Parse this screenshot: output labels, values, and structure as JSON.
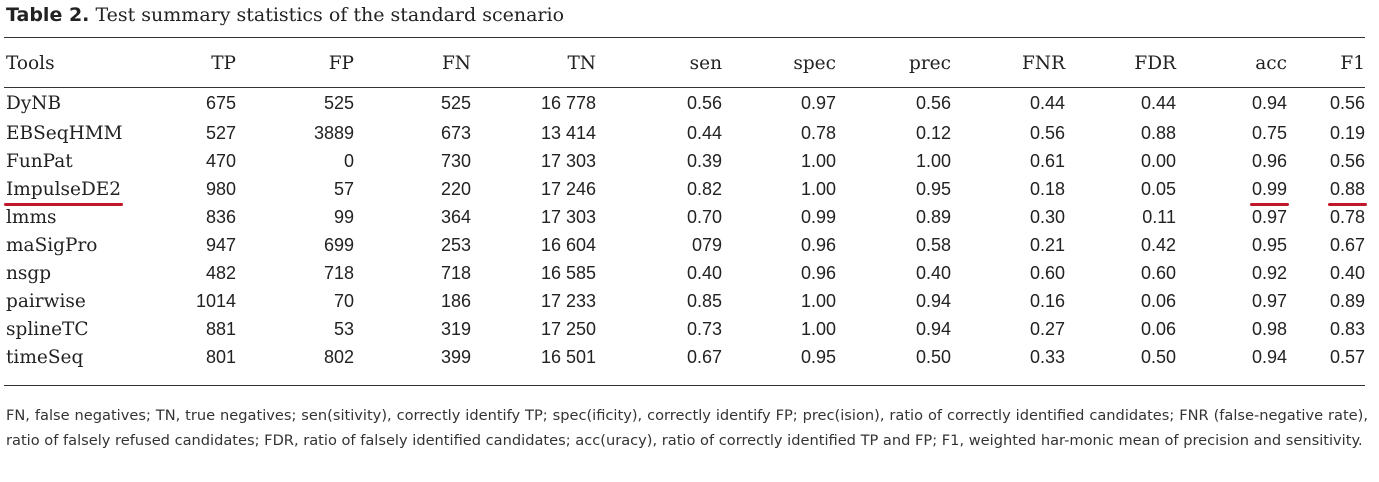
{
  "caption": {
    "label": "Table 2.",
    "title": "Test summary statistics of the standard scenario"
  },
  "headers": [
    "Tools",
    "TP",
    "FP",
    "FN",
    "TN",
    "sen",
    "spec",
    "prec",
    "FNR",
    "FDR",
    "acc",
    "F1"
  ],
  "rows": [
    [
      "DyNB",
      "675",
      "525",
      "525",
      "16 778",
      "0.56",
      "0.97",
      "0.56",
      "0.44",
      "0.44",
      "0.94",
      "0.56"
    ],
    [
      "EBSeqHMM",
      "527",
      "3889",
      "673",
      "13 414",
      "0.44",
      "0.78",
      "0.12",
      "0.56",
      "0.88",
      "0.75",
      "0.19"
    ],
    [
      "FunPat",
      "470",
      "0",
      "730",
      "17 303",
      "0.39",
      "1.00",
      "1.00",
      "0.61",
      "0.00",
      "0.96",
      "0.56"
    ],
    [
      "ImpulseDE2",
      "980",
      "57",
      "220",
      "17 246",
      "0.82",
      "1.00",
      "0.95",
      "0.18",
      "0.05",
      "0.99",
      "0.88"
    ],
    [
      "lmms",
      "836",
      "99",
      "364",
      "17 303",
      "0.70",
      "0.99",
      "0.89",
      "0.30",
      "0.11",
      "0.97",
      "0.78"
    ],
    [
      "maSigPro",
      "947",
      "699",
      "253",
      "16 604",
      "079",
      "0.96",
      "0.58",
      "0.21",
      "0.42",
      "0.95",
      "0.67"
    ],
    [
      "nsgp",
      "482",
      "718",
      "718",
      "16 585",
      "0.40",
      "0.96",
      "0.40",
      "0.60",
      "0.60",
      "0.92",
      "0.40"
    ],
    [
      "pairwise",
      "1014",
      "70",
      "186",
      "17 233",
      "0.85",
      "1.00",
      "0.94",
      "0.16",
      "0.06",
      "0.97",
      "0.89"
    ],
    [
      "splineTC",
      "881",
      "53",
      "319",
      "17 250",
      "0.73",
      "1.00",
      "0.94",
      "0.27",
      "0.06",
      "0.98",
      "0.83"
    ],
    [
      "timeSeq",
      "801",
      "802",
      "399",
      "16 501",
      "0.67",
      "0.95",
      "0.50",
      "0.33",
      "0.50",
      "0.94",
      "0.57"
    ]
  ],
  "highlight_color": "#c0182a",
  "footnote": "FN, false negatives; TN, true negatives; sen(sitivity), correctly identify TP; spec(ificity), correctly identify FP; prec(ision), ratio of correctly identified candidates; FNR (false-negative rate), ratio of falsely refused candidates; FDR, ratio of falsely identified candidates; acc(uracy), ratio of correctly identified TP and FP; F1, weighted har-monic mean of precision and sensitivity."
}
